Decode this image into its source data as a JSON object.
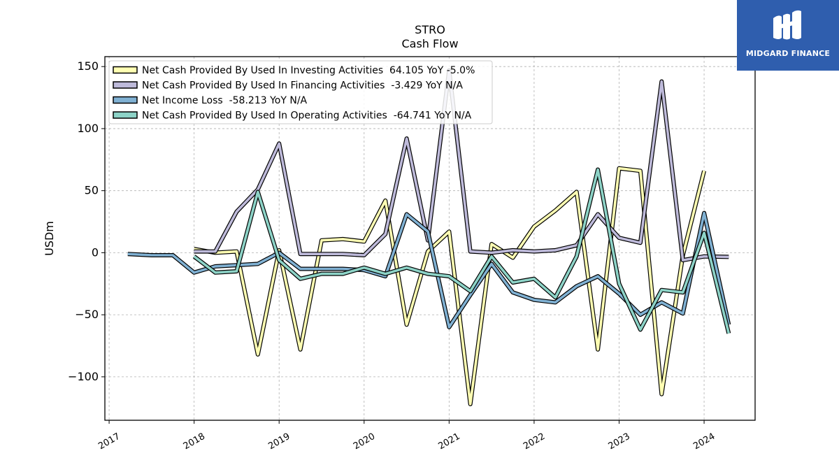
{
  "brand": {
    "name": "MIDGARD FINANCE",
    "color": "#2f5eae"
  },
  "chart_data": {
    "type": "line",
    "title": "STRO",
    "subtitle": "Cash Flow",
    "xlabel": "",
    "ylabel": "USDm",
    "ylim": [
      -135,
      158
    ],
    "xlim": [
      2016.95,
      2024.6
    ],
    "yticks": [
      150,
      100,
      50,
      0,
      -50,
      -100
    ],
    "ytick_labels": [
      "150",
      "100",
      "50",
      "0",
      "−50",
      "−100"
    ],
    "xticks": [
      2017,
      2018,
      2019,
      2020,
      2021,
      2022,
      2023,
      2024
    ],
    "xtick_labels": [
      "2017",
      "2018",
      "2019",
      "2020",
      "2021",
      "2022",
      "2023",
      "2024"
    ],
    "grid": true,
    "legend_position": "top-left",
    "series": [
      {
        "name": "Net Cash Provided By Used In Investing Activities  64.105 YoY -5.0%",
        "color": "#ffffb3",
        "points": [
          [
            2018.0,
            3
          ],
          [
            2018.25,
            0
          ],
          [
            2018.5,
            1
          ],
          [
            2018.75,
            -82
          ],
          [
            2019.0,
            2
          ],
          [
            2019.25,
            -78
          ],
          [
            2019.5,
            10
          ],
          [
            2019.75,
            11
          ],
          [
            2020.0,
            9
          ],
          [
            2020.25,
            42
          ],
          [
            2020.5,
            -58
          ],
          [
            2020.75,
            1
          ],
          [
            2021.0,
            17
          ],
          [
            2021.25,
            -122
          ],
          [
            2021.5,
            7
          ],
          [
            2021.75,
            -4
          ],
          [
            2022.0,
            21
          ],
          [
            2022.25,
            34
          ],
          [
            2022.5,
            49
          ],
          [
            2022.75,
            -78
          ],
          [
            2023.0,
            68
          ],
          [
            2023.25,
            66
          ],
          [
            2023.5,
            -114
          ],
          [
            2023.75,
            -2
          ],
          [
            2024.0,
            66
          ]
        ]
      },
      {
        "name": "Net Cash Provided By Used In Financing Activities  -3.429 YoY N/A",
        "color": "#bebada",
        "points": [
          [
            2018.0,
            1
          ],
          [
            2018.25,
            1
          ],
          [
            2018.5,
            33
          ],
          [
            2018.75,
            51
          ],
          [
            2019.0,
            88
          ],
          [
            2019.25,
            -1
          ],
          [
            2019.5,
            -1
          ],
          [
            2019.75,
            -1
          ],
          [
            2020.0,
            -2
          ],
          [
            2020.25,
            15
          ],
          [
            2020.5,
            92
          ],
          [
            2020.75,
            10
          ],
          [
            2021.0,
            147
          ],
          [
            2021.25,
            1
          ],
          [
            2021.5,
            0
          ],
          [
            2021.75,
            2
          ],
          [
            2022.0,
            1
          ],
          [
            2022.25,
            2
          ],
          [
            2022.5,
            6
          ],
          [
            2022.75,
            31
          ],
          [
            2023.0,
            12
          ],
          [
            2023.25,
            8
          ],
          [
            2023.5,
            138
          ],
          [
            2023.75,
            -6
          ],
          [
            2024.0,
            -3
          ],
          [
            2024.29,
            -3.4
          ]
        ]
      },
      {
        "name": "Net Income Loss  -58.213 YoY N/A",
        "color": "#80b1d3",
        "points": [
          [
            2017.22,
            -1
          ],
          [
            2017.5,
            -2
          ],
          [
            2017.75,
            -2
          ],
          [
            2018.0,
            -16
          ],
          [
            2018.25,
            -11
          ],
          [
            2018.5,
            -10
          ],
          [
            2018.75,
            -9
          ],
          [
            2019.0,
            0
          ],
          [
            2019.25,
            -13
          ],
          [
            2019.5,
            -13
          ],
          [
            2019.75,
            -13
          ],
          [
            2020.0,
            -14
          ],
          [
            2020.25,
            -19
          ],
          [
            2020.5,
            31
          ],
          [
            2020.75,
            17
          ],
          [
            2021.0,
            -60
          ],
          [
            2021.25,
            -34
          ],
          [
            2021.5,
            -9
          ],
          [
            2021.75,
            -32
          ],
          [
            2022.0,
            -38
          ],
          [
            2022.25,
            -40
          ],
          [
            2022.5,
            -27
          ],
          [
            2022.75,
            -19
          ],
          [
            2023.0,
            -33
          ],
          [
            2023.25,
            -50
          ],
          [
            2023.5,
            -40
          ],
          [
            2023.75,
            -49
          ],
          [
            2024.0,
            32
          ],
          [
            2024.29,
            -58
          ]
        ]
      },
      {
        "name": "Net Cash Provided By Used In Operating Activities  -64.741 YoY N/A",
        "color": "#8dd3c7",
        "points": [
          [
            2018.0,
            -3
          ],
          [
            2018.25,
            -16
          ],
          [
            2018.5,
            -15
          ],
          [
            2018.75,
            49
          ],
          [
            2019.0,
            -6
          ],
          [
            2019.25,
            -21
          ],
          [
            2019.5,
            -17
          ],
          [
            2019.75,
            -17
          ],
          [
            2020.0,
            -12
          ],
          [
            2020.25,
            -17
          ],
          [
            2020.5,
            -12
          ],
          [
            2020.75,
            -17
          ],
          [
            2021.0,
            -19
          ],
          [
            2021.25,
            -31
          ],
          [
            2021.5,
            -3
          ],
          [
            2021.75,
            -24
          ],
          [
            2022.0,
            -21
          ],
          [
            2022.25,
            -36
          ],
          [
            2022.5,
            -3
          ],
          [
            2022.75,
            67
          ],
          [
            2023.0,
            -25
          ],
          [
            2023.25,
            -62
          ],
          [
            2023.5,
            -30
          ],
          [
            2023.75,
            -32
          ],
          [
            2024.0,
            16
          ],
          [
            2024.29,
            -65
          ]
        ]
      }
    ]
  }
}
